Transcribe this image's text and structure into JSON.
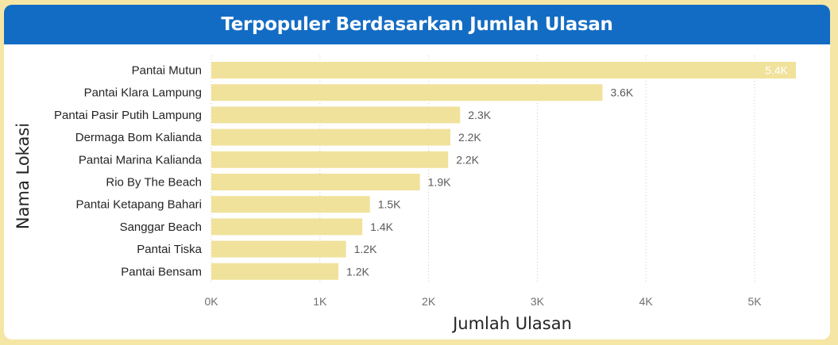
{
  "header": {
    "title": "Terpopuler Berdasarkan Jumlah Ulasan"
  },
  "colors": {
    "header_bg": "#136cc4",
    "bar": "#f0e29b",
    "frame": "#f5e6a6"
  },
  "chart_data": {
    "type": "bar",
    "orientation": "horizontal",
    "categories": [
      "Pantai Mutun",
      "Pantai Klara Lampung",
      "Pantai Pasir Putih Lampung",
      "Dermaga Bom Kalianda",
      "Pantai Marina Kalianda",
      "Rio By The Beach",
      "Pantai Ketapang Bahari",
      "Sanggar Beach",
      "Pantai Tiska",
      "Pantai Bensam"
    ],
    "values": [
      5380,
      3600,
      2290,
      2200,
      2180,
      1920,
      1460,
      1390,
      1240,
      1170
    ],
    "data_labels": [
      "5.4K",
      "3.6K",
      "2.3K",
      "2.2K",
      "2.2K",
      "1.9K",
      "1.5K",
      "1.4K",
      "1.2K",
      "1.2K"
    ],
    "xlabel": "Jumlah Ulasan",
    "ylabel": "Nama Lokasi",
    "xlim": [
      0,
      5500
    ],
    "xticks": [
      0,
      1000,
      2000,
      3000,
      4000,
      5000
    ],
    "xtick_labels": [
      "0K",
      "1K",
      "2K",
      "3K",
      "4K",
      "5K"
    ],
    "grid": true
  }
}
